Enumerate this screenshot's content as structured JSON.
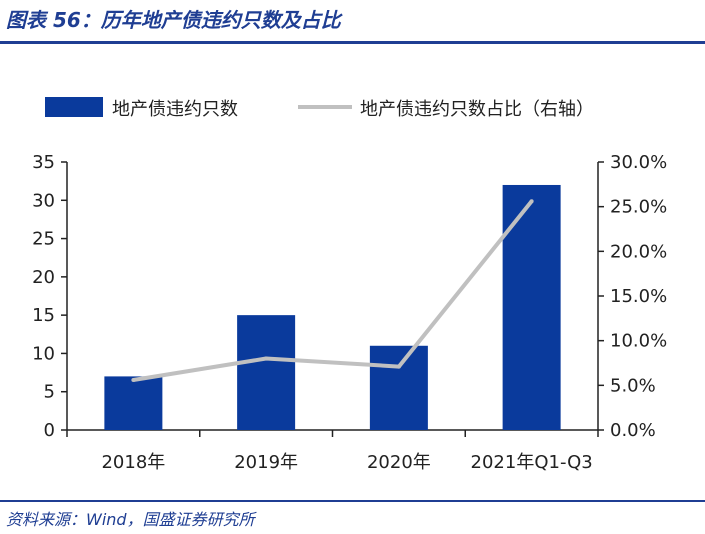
{
  "title": "图表 56：历年地产债违约只数及占比",
  "source": "资料来源：Wind，国盛证券研究所",
  "colors": {
    "bar": "#0a3a9c",
    "line": "#c0c0c0",
    "title": "#1f3e93",
    "axis": "#222222"
  },
  "chart_data": {
    "type": "bar",
    "categories": [
      "2018年",
      "2019年",
      "2020年",
      "2021年Q1-Q3"
    ],
    "series": [
      {
        "name": "地产债违约只数",
        "type": "bar",
        "axis": "left",
        "values": [
          7,
          15,
          11,
          32
        ]
      },
      {
        "name": "地产债违约只数占比（右轴）",
        "type": "line",
        "axis": "right",
        "values": [
          5.6,
          8.0,
          7.1,
          25.6
        ]
      }
    ],
    "yleft": {
      "ticks": [
        "0",
        "5",
        "10",
        "15",
        "20",
        "25",
        "30",
        "35"
      ],
      "ylim": [
        0,
        35
      ]
    },
    "yright": {
      "ticks": [
        "0.0%",
        "5.0%",
        "10.0%",
        "15.0%",
        "20.0%",
        "25.0%",
        "30.0%"
      ],
      "ylim": [
        0,
        30
      ]
    },
    "legend_position": "top",
    "grid": false
  }
}
